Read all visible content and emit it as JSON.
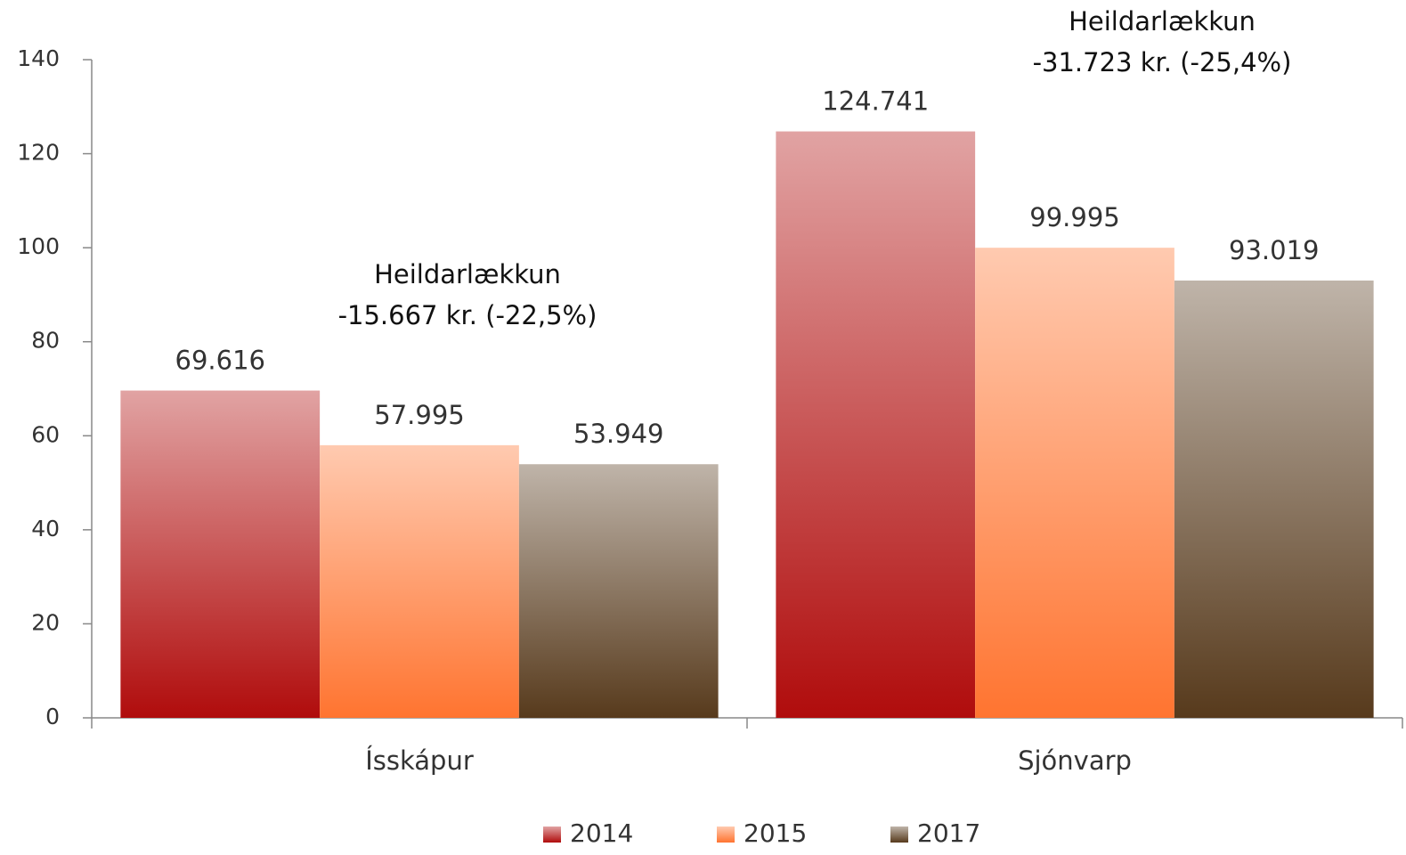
{
  "chart_data": {
    "type": "bar",
    "categories": [
      "Ísskápur",
      "Sjónvarp"
    ],
    "series": [
      {
        "name": "2014",
        "color": "#b00c0c",
        "values": [
          69.616,
          124.741
        ]
      },
      {
        "name": "2015",
        "color": "#ff7430",
        "values": [
          57.995,
          99.995
        ]
      },
      {
        "name": "2017",
        "color": "#573a1c",
        "values": [
          53.949,
          93.019
        ]
      }
    ],
    "ylim": [
      0,
      140
    ],
    "yticks": [
      0,
      20,
      40,
      60,
      80,
      100,
      120,
      140
    ],
    "annotations": [
      [
        "Heildarlækkun",
        "-15.667 kr. (-22,5%)"
      ],
      [
        "Heildarlækkun",
        "-31.723 kr. (-25,4%)"
      ]
    ],
    "legend": "bottom"
  }
}
